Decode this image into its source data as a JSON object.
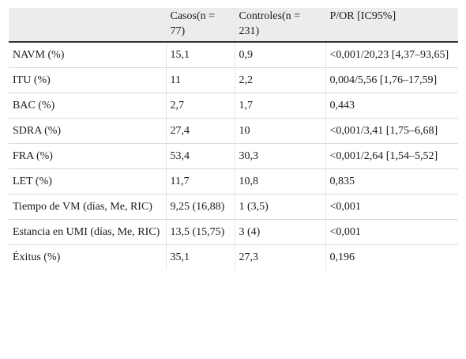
{
  "table": {
    "headers": [
      "",
      "Casos(n = 77)",
      "Controles(n = 231)",
      "P/OR [IC95%]"
    ],
    "rows": [
      [
        "NAVM (%)",
        "15,1",
        "0,9",
        "<0,001/20,23 [4,37–93,65]"
      ],
      [
        "ITU (%)",
        "11",
        "2,2",
        "0,004/5,56 [1,76–17,59]"
      ],
      [
        "BAC (%)",
        "2,7",
        "1,7",
        "0,443"
      ],
      [
        "SDRA (%)",
        "27,4",
        "10",
        "<0,001/3,41 [1,75–6,68]"
      ],
      [
        "FRA (%)",
        "53,4",
        "30,3",
        "<0,001/2,64 [1,54–5,52]"
      ],
      [
        "LET (%)",
        "11,7",
        "10,8",
        "0,835"
      ],
      [
        "Tiempo de VM (días, Me, RIC)",
        "9,25 (16,88)",
        "1 (3,5)",
        "<0,001"
      ],
      [
        "Estancia en UMI (días, Me, RIC)",
        "13,5 (15,75)",
        "3 (4)",
        "<0,001"
      ],
      [
        "Éxitus (%)",
        "35,1",
        "27,3",
        "0,196"
      ]
    ]
  }
}
